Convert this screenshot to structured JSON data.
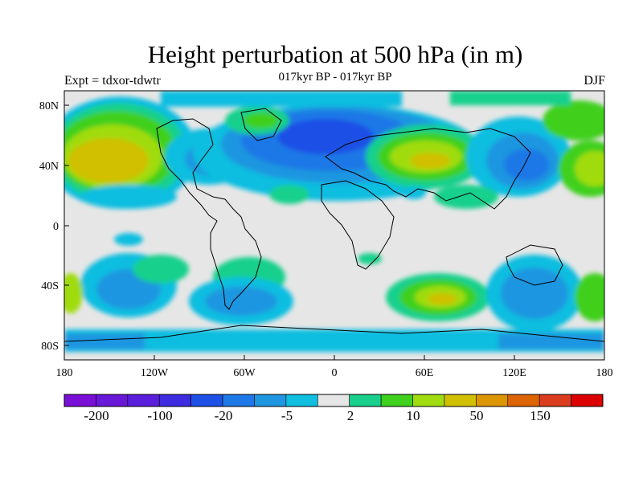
{
  "header": {
    "title": "Height perturbation at 500 hPa (in m)",
    "expt_label": "Expt = tdxor-tdwtr",
    "period_label": "017kyr BP - 017kyr BP",
    "season_label": "DJF"
  },
  "axes": {
    "x_ticks": [
      "180",
      "120W",
      "60W",
      "0",
      "60E",
      "120E",
      "180"
    ],
    "y_ticks": [
      "80N",
      "40N",
      "0",
      "40S",
      "80S"
    ]
  },
  "colorbar": {
    "colors": [
      "#7A10D8",
      "#6A18D8",
      "#5A1EDC",
      "#3E2CE0",
      "#1E50E6",
      "#1E78E6",
      "#1E96E0",
      "#10BEE0",
      "#E6E6E6",
      "#18D08C",
      "#40D01E",
      "#A0DC10",
      "#D0C000",
      "#DC9600",
      "#DC6400",
      "#DC3C1E",
      "#DC0000"
    ],
    "labels": [
      "-200",
      "-100",
      "-20",
      "-5",
      "2",
      "10",
      "50",
      "150"
    ]
  },
  "colors": {
    "background": "#E6E6E6",
    "land_outline": "#000000"
  }
}
